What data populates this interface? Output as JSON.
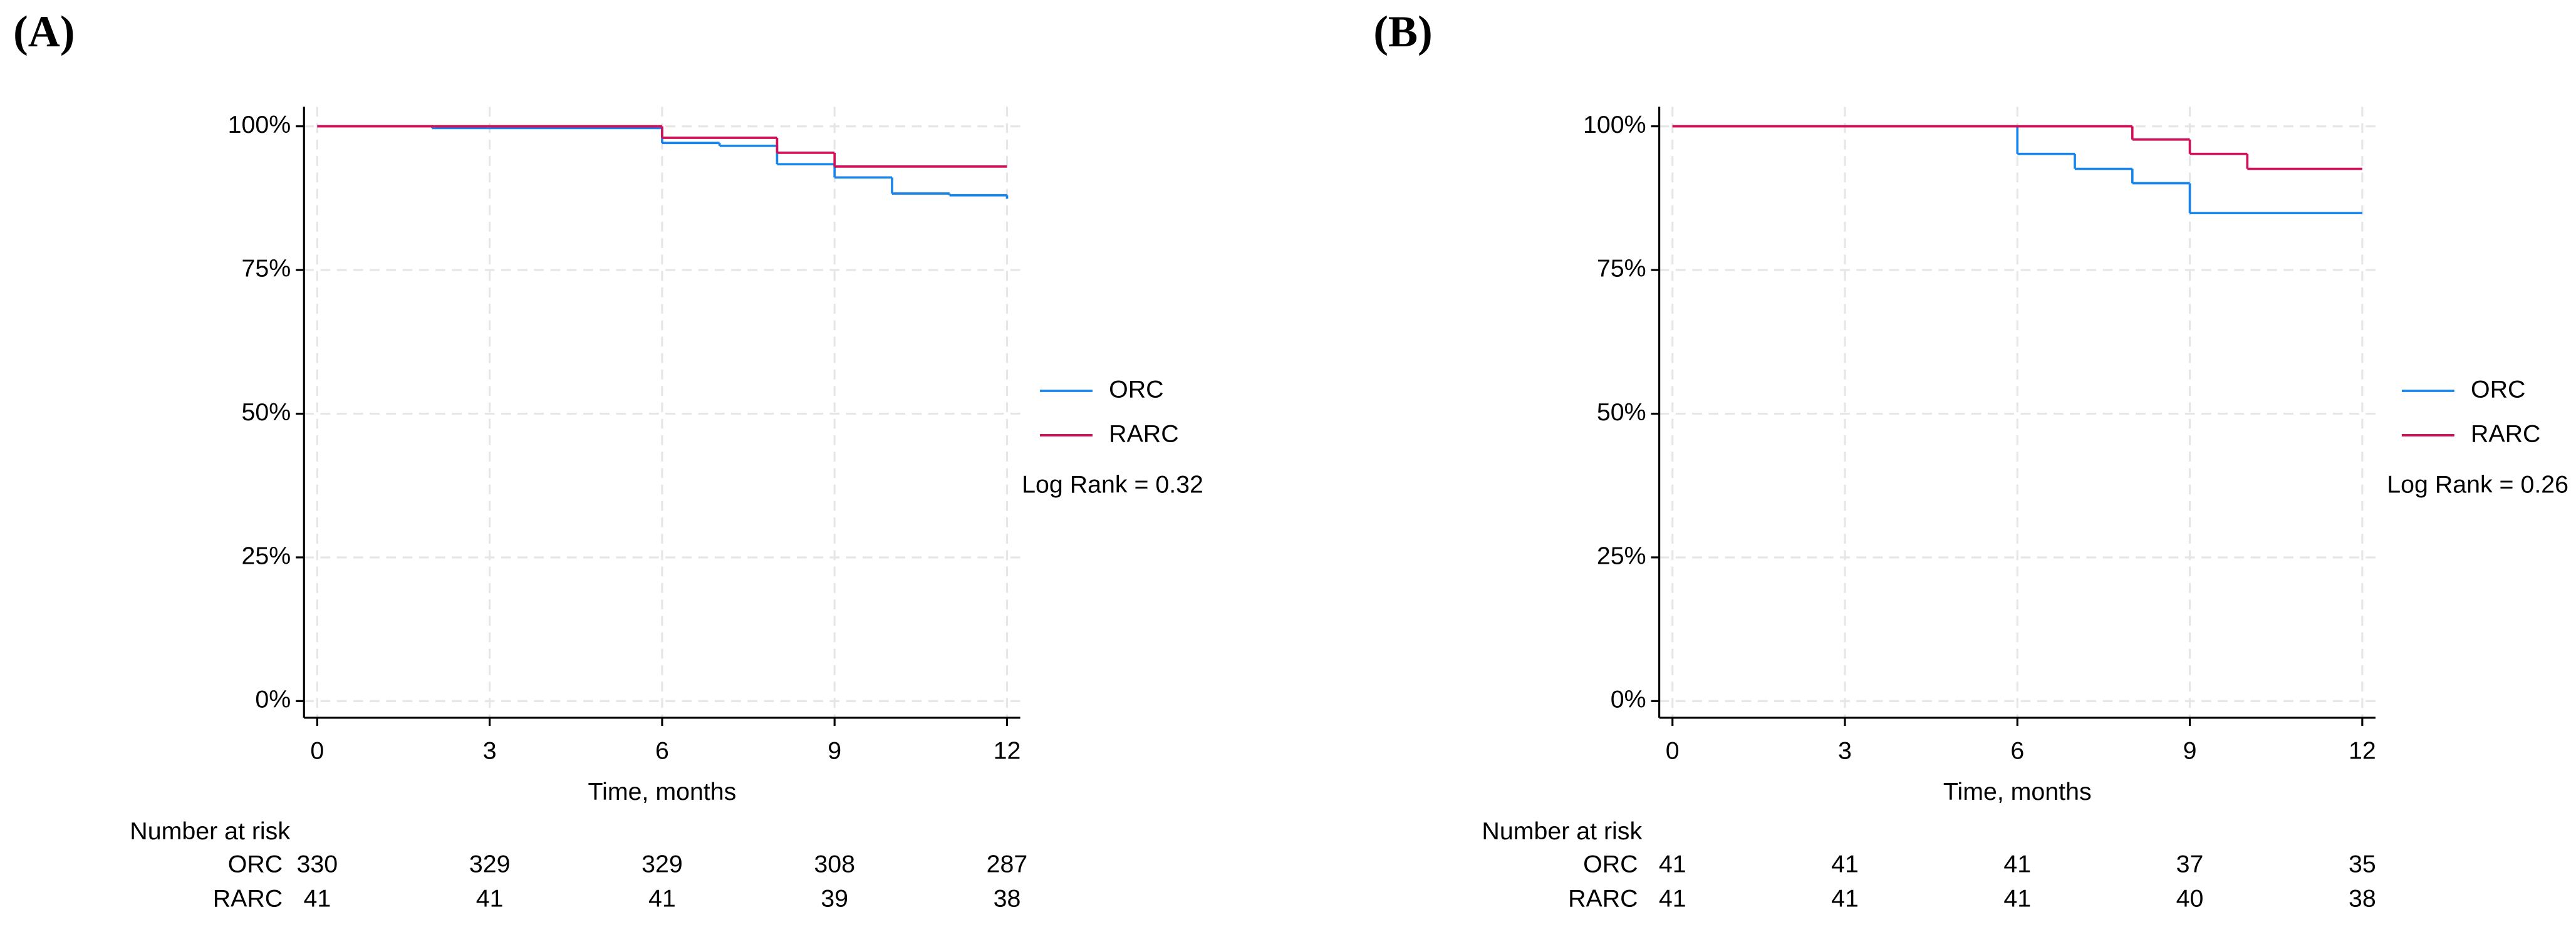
{
  "chart_data": [
    {
      "type": "line",
      "panel_label": "(A)",
      "x_label": "Time, months",
      "xlim": [
        -0.23,
        12.23
      ],
      "ylim": [
        -2.9,
        103.4
      ],
      "xticks": [
        0,
        3,
        6,
        9,
        12
      ],
      "yticks": [
        {
          "value": 0,
          "label": "0%"
        },
        {
          "value": 25,
          "label": "25%"
        },
        {
          "value": 50,
          "label": "50%"
        },
        {
          "value": 75,
          "label": "75%"
        },
        {
          "value": 100,
          "label": "100%"
        }
      ],
      "grid": true,
      "legend": "right",
      "series": [
        {
          "name": "ORC",
          "color": "#1a85e8",
          "x": [
            0,
            2,
            6,
            7,
            8,
            9,
            10,
            11,
            12
          ],
          "values": [
            100,
            99.7,
            97.1,
            96.6,
            93.4,
            91.1,
            88.3,
            88,
            87.4
          ]
        },
        {
          "name": "RARC",
          "color": "#d0115a",
          "x": [
            0,
            6,
            8,
            9,
            12
          ],
          "values": [
            100,
            98,
            95.4,
            93,
            93
          ]
        }
      ],
      "annotation": "Log Rank = 0.32",
      "risk_table": {
        "title": "Number at risk",
        "rows": [
          {
            "name": "ORC",
            "values": [
              "330",
              "329",
              "329",
              "308",
              "287"
            ]
          },
          {
            "name": "RARC",
            "values": [
              "41",
              "41",
              "41",
              "39",
              "38"
            ]
          }
        ]
      }
    },
    {
      "type": "line",
      "panel_label": "(B)",
      "x_label": "Time, months",
      "xlim": [
        -0.23,
        12.23
      ],
      "ylim": [
        -2.9,
        103.4
      ],
      "xticks": [
        0,
        3,
        6,
        9,
        12
      ],
      "yticks": [
        {
          "value": 0,
          "label": "0%"
        },
        {
          "value": 25,
          "label": "25%"
        },
        {
          "value": 50,
          "label": "50%"
        },
        {
          "value": 75,
          "label": "75%"
        },
        {
          "value": 100,
          "label": "100%"
        }
      ],
      "grid": true,
      "legend": "right",
      "series": [
        {
          "name": "ORC",
          "color": "#1a85e8",
          "x": [
            0,
            6,
            7,
            8,
            9,
            12
          ],
          "values": [
            100,
            95.2,
            92.6,
            90.1,
            84.9,
            84.9
          ]
        },
        {
          "name": "RARC",
          "color": "#d0115a",
          "x": [
            0,
            8,
            9,
            10,
            12
          ],
          "values": [
            100,
            97.7,
            95.2,
            92.6,
            92.6
          ]
        }
      ],
      "annotation": "Log Rank = 0.26",
      "risk_table": {
        "title": "Number at risk",
        "rows": [
          {
            "name": "ORC",
            "values": [
              "41",
              "41",
              "41",
              "37",
              "35"
            ]
          },
          {
            "name": "RARC",
            "values": [
              "41",
              "41",
              "41",
              "40",
              "38"
            ]
          }
        ]
      }
    }
  ]
}
